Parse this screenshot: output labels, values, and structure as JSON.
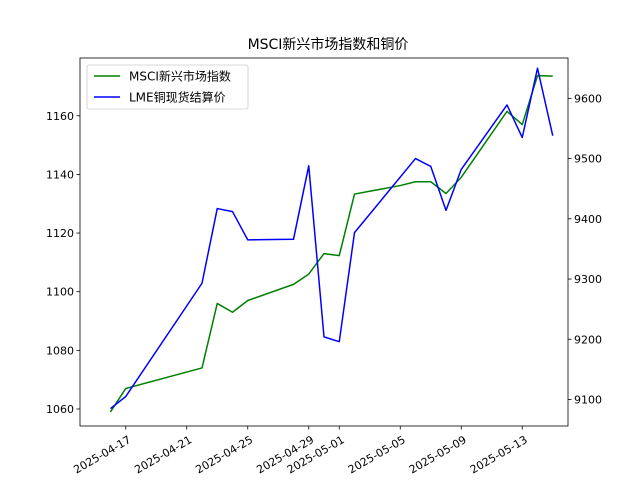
{
  "chart_data": {
    "type": "line",
    "title": "MSCI新兴市场指数和铜价",
    "xlabel": "",
    "ylabel_left": "",
    "ylabel_right": "",
    "x_ticks": [
      "2025-04-17",
      "2025-04-21",
      "2025-04-25",
      "2025-04-29",
      "2025-05-01",
      "2025-05-05",
      "2025-05-09",
      "2025-05-13"
    ],
    "y_left_ticks": [
      1060,
      1080,
      1100,
      1120,
      1140,
      1160
    ],
    "y_right_ticks": [
      9100,
      9200,
      9300,
      9400,
      9500,
      9600
    ],
    "x_range": [
      "2025-04-14",
      "2025-05-16"
    ],
    "y_left_range": [
      1054.2,
      1179.7
    ],
    "y_right_range": [
      9056,
      9667
    ],
    "legend_position": "top-left",
    "grid": false,
    "series": [
      {
        "name": "MSCI新兴市场指数",
        "axis": "left",
        "color": "#008000",
        "points": [
          [
            "2025-04-16",
            1059
          ],
          [
            "2025-04-17",
            1067
          ],
          [
            "2025-04-22",
            1074
          ],
          [
            "2025-04-23",
            1096
          ],
          [
            "2025-04-24",
            1093
          ],
          [
            "2025-04-25",
            1097
          ],
          [
            "2025-04-28",
            1102.5
          ],
          [
            "2025-04-29",
            1106
          ],
          [
            "2025-04-30",
            1113
          ],
          [
            "2025-05-01",
            1112.3
          ],
          [
            "2025-05-02",
            1133.3
          ],
          [
            "2025-05-05",
            1136.2
          ],
          [
            "2025-05-06",
            1137.5
          ],
          [
            "2025-05-07",
            1137.5
          ],
          [
            "2025-05-08",
            1133.5
          ],
          [
            "2025-05-09",
            1139
          ],
          [
            "2025-05-12",
            1161.5
          ],
          [
            "2025-05-13",
            1157
          ],
          [
            "2025-05-14",
            1173.7
          ],
          [
            "2025-05-15",
            1173.5
          ]
        ]
      },
      {
        "name": "LME铜现货结算价",
        "axis": "right",
        "color": "#0000ff",
        "points": [
          [
            "2025-04-16",
            9085
          ],
          [
            "2025-04-17",
            9105
          ],
          [
            "2025-04-22",
            9293
          ],
          [
            "2025-04-23",
            9417
          ],
          [
            "2025-04-24",
            9412
          ],
          [
            "2025-04-25",
            9365
          ],
          [
            "2025-04-28",
            9366
          ],
          [
            "2025-04-29",
            9488
          ],
          [
            "2025-04-30",
            9204
          ],
          [
            "2025-05-01",
            9196
          ],
          [
            "2025-05-02",
            9377
          ],
          [
            "2025-05-06",
            9500
          ],
          [
            "2025-05-07",
            9487
          ],
          [
            "2025-05-08",
            9414
          ],
          [
            "2025-05-09",
            9482
          ],
          [
            "2025-05-12",
            9589
          ],
          [
            "2025-05-13",
            9535
          ],
          [
            "2025-05-14",
            9650
          ],
          [
            "2025-05-15",
            9538
          ]
        ]
      }
    ]
  }
}
